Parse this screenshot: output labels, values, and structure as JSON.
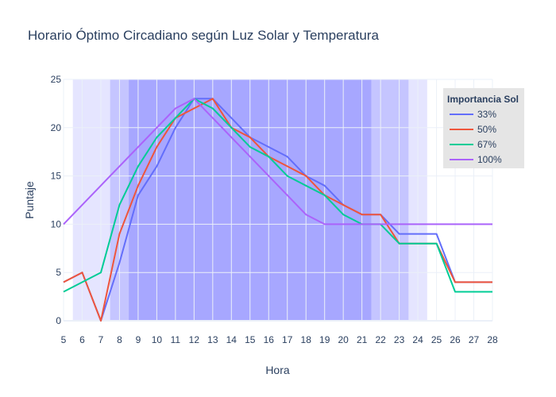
{
  "chart_data": {
    "type": "line",
    "title": "Horario Óptimo Circadiano según Luz Solar y Temperatura",
    "xlabel": "Hora",
    "ylabel": "Puntaje",
    "xlim": [
      5,
      28
    ],
    "ylim": [
      0,
      25
    ],
    "x_ticks": [
      5,
      6,
      7,
      8,
      9,
      10,
      11,
      12,
      13,
      14,
      15,
      16,
      17,
      18,
      19,
      20,
      21,
      22,
      23,
      24,
      25,
      26,
      27,
      28
    ],
    "y_ticks": [
      0,
      5,
      10,
      15,
      20,
      25
    ],
    "grid": true,
    "legend": {
      "title": "Importancia Sol",
      "placement": "top-right"
    },
    "bands": [
      {
        "x0": 5.5,
        "x1": 24.5,
        "color": "#7b7bff",
        "opacity": 0.2
      },
      {
        "x0": 7.5,
        "x1": 23.5,
        "color": "#7b7bff",
        "opacity": 0.3
      },
      {
        "x0": 8.5,
        "x1": 21.5,
        "color": "#7b7bff",
        "opacity": 0.4
      }
    ],
    "series": [
      {
        "name": "33%",
        "color": "#636efa",
        "x": [
          5,
          6,
          7,
          8,
          9,
          10,
          11,
          12,
          13,
          14,
          15,
          16,
          17,
          18,
          19,
          20,
          21,
          22,
          23,
          24,
          25,
          26,
          27,
          28
        ],
        "y": [
          4,
          5,
          0,
          6,
          13,
          16,
          20,
          23,
          23,
          21,
          19,
          18,
          17,
          15,
          14,
          12,
          11,
          11,
          9,
          9,
          9,
          4,
          4,
          4
        ]
      },
      {
        "name": "50%",
        "color": "#ef553b",
        "x": [
          5,
          6,
          7,
          8,
          9,
          10,
          11,
          12,
          13,
          14,
          15,
          16,
          17,
          18,
          19,
          20,
          21,
          22,
          23,
          24,
          25,
          26,
          27,
          28
        ],
        "y": [
          4,
          5,
          0,
          9,
          14,
          18,
          21,
          22,
          23,
          20,
          19,
          17,
          16,
          15,
          13,
          12,
          11,
          11,
          8,
          8,
          8,
          4,
          4,
          4
        ]
      },
      {
        "name": "67%",
        "color": "#00cc96",
        "x": [
          5,
          6,
          7,
          8,
          9,
          10,
          11,
          12,
          13,
          14,
          15,
          16,
          17,
          18,
          19,
          20,
          21,
          22,
          23,
          24,
          25,
          26,
          27,
          28
        ],
        "y": [
          3,
          4,
          5,
          12,
          16,
          19,
          21,
          23,
          22,
          20,
          18,
          17,
          15,
          14,
          13,
          11,
          10,
          10,
          8,
          8,
          8,
          3,
          3,
          3
        ]
      },
      {
        "name": "100%",
        "color": "#ab63fa",
        "x": [
          5,
          11,
          12,
          13,
          18,
          19,
          28
        ],
        "y": [
          10,
          22,
          23,
          21,
          11,
          10,
          10
        ]
      }
    ]
  }
}
